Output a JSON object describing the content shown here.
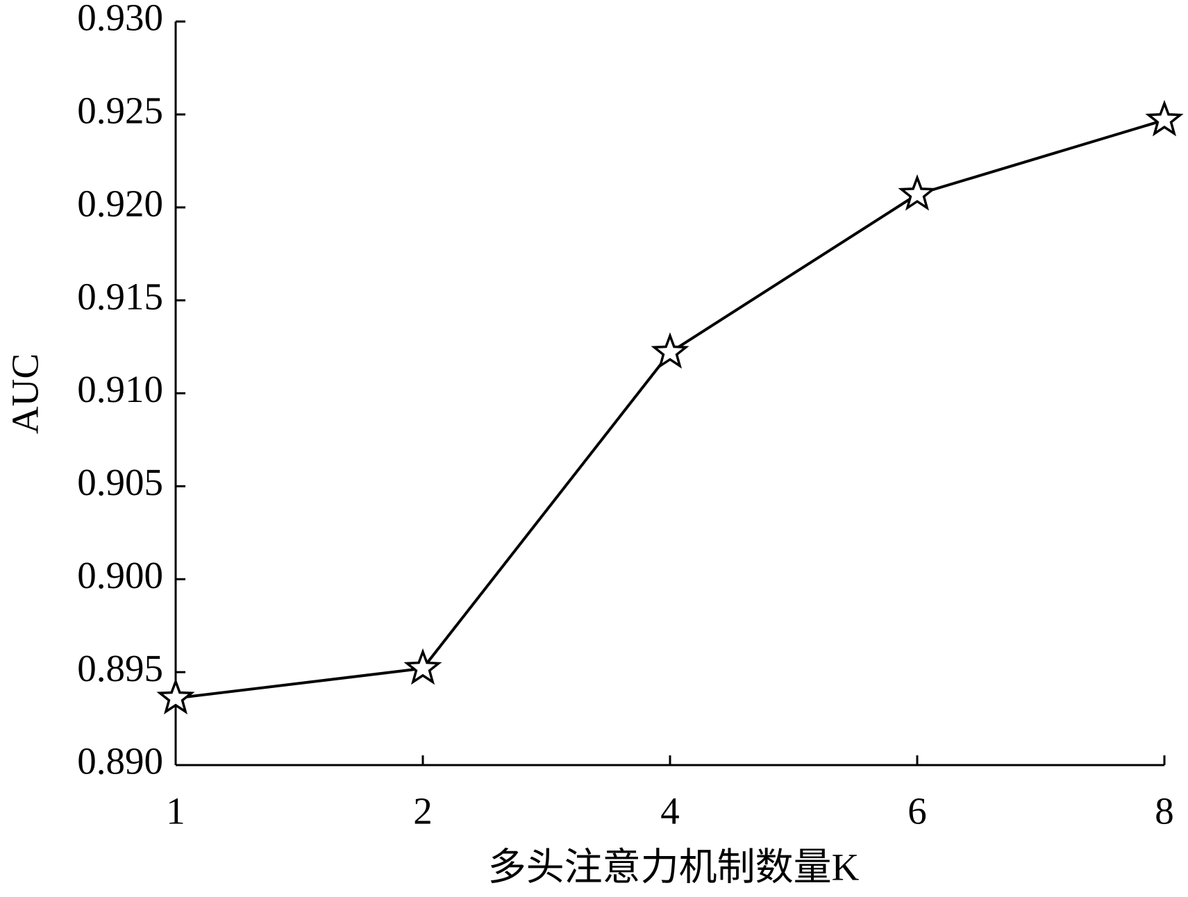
{
  "chart_data": {
    "type": "line",
    "x_label": "多头注意力机制数量K",
    "y_label": "AUC",
    "categories": [
      "1",
      "2",
      "4",
      "6",
      "8"
    ],
    "series": [
      {
        "color": "#000000",
        "marker": "star",
        "values": [
          0.8936,
          0.8952,
          0.9122,
          0.9207,
          0.9247
        ]
      }
    ],
    "ylim": [
      0.89,
      0.93
    ],
    "yticks": [
      {
        "value": 0.89,
        "label": "0.890"
      },
      0.895,
      {
        "value": 0.9,
        "label": "0.900"
      },
      0.905,
      {
        "value": 0.91,
        "label": "0.910"
      },
      0.915,
      {
        "value": 0.92,
        "label": "0.920"
      },
      0.925,
      {
        "value": 0.93,
        "label": "0.930"
      }
    ],
    "grid": false
  }
}
